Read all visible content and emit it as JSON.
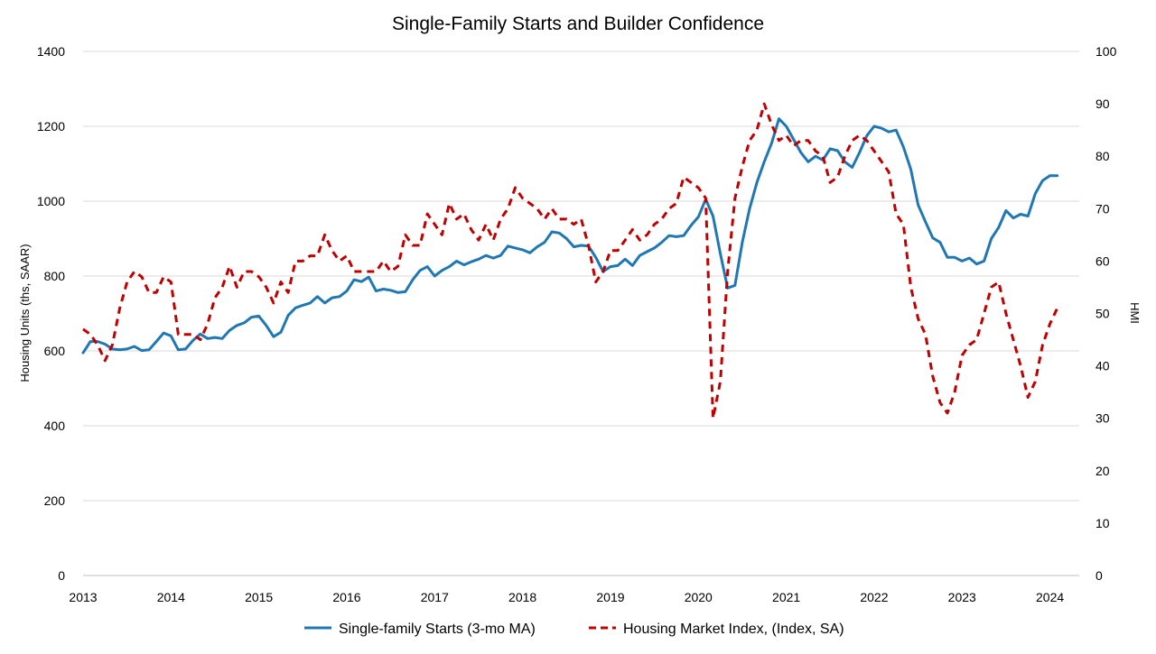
{
  "chart_data": {
    "type": "line",
    "title": "Single-Family Starts and Builder Confidence",
    "ylabel": "Housing Units (ths, SAAR)",
    "y2label": "HMI",
    "ylim": [
      0,
      1400
    ],
    "y2lim": [
      0,
      100
    ],
    "xlim": [
      2013,
      2024.333
    ],
    "yticks": [
      "0",
      "200",
      "400",
      "600",
      "800",
      "1000",
      "1200",
      "1400"
    ],
    "y2ticks": [
      "0",
      "10",
      "20",
      "30",
      "40",
      "50",
      "60",
      "70",
      "80",
      "90",
      "100"
    ],
    "xticks": [
      "2013",
      "2014",
      "2015",
      "2016",
      "2017",
      "2018",
      "2019",
      "2020",
      "2021",
      "2022",
      "2023",
      "2024"
    ],
    "grid": true,
    "legend": "bottom",
    "series": [
      {
        "name": "Single-family Starts (3-mo MA)",
        "axis": "left",
        "color": "#1f77b4",
        "style": "solid",
        "start": 2013.0,
        "step": 0.08333,
        "values": [
          595,
          625,
          625,
          618,
          605,
          603,
          605,
          612,
          601,
          603,
          625,
          648,
          640,
          603,
          605,
          628,
          645,
          633,
          636,
          633,
          655,
          668,
          675,
          690,
          693,
          668,
          638,
          650,
          695,
          715,
          722,
          728,
          745,
          728,
          742,
          745,
          760,
          790,
          785,
          797,
          760,
          765,
          762,
          756,
          758,
          790,
          815,
          825,
          800,
          815,
          825,
          840,
          830,
          838,
          845,
          855,
          848,
          855,
          880,
          875,
          870,
          862,
          878,
          890,
          918,
          915,
          900,
          878,
          882,
          880,
          850,
          812,
          825,
          828,
          845,
          828,
          855,
          865,
          875,
          890,
          908,
          905,
          908,
          935,
          958,
          1005,
          960,
          860,
          768,
          775,
          890,
          980,
          1050,
          1105,
          1155,
          1220,
          1200,
          1165,
          1130,
          1105,
          1120,
          1110,
          1140,
          1135,
          1105,
          1090,
          1130,
          1175,
          1200,
          1195,
          1185,
          1190,
          1145,
          1085,
          990,
          945,
          902,
          890,
          850,
          850,
          840,
          848,
          832,
          840,
          900,
          930,
          975,
          955,
          965,
          960,
          1020,
          1055,
          1068,
          1068
        ]
      },
      {
        "name": "Housing Market Index, (Index, SA)",
        "axis": "right",
        "color": "#c00000",
        "style": "dashed",
        "start": 2013.0,
        "step": 0.08333,
        "values": [
          47,
          46,
          44,
          41,
          44,
          51,
          56,
          58,
          57,
          54,
          54,
          57,
          56,
          46,
          46,
          46,
          45,
          48,
          53,
          55,
          59,
          55,
          58,
          58,
          57,
          55,
          52,
          56,
          54,
          60,
          60,
          61,
          61,
          65,
          62,
          60,
          61,
          58,
          58,
          58,
          58,
          60,
          58,
          59,
          65,
          63,
          63,
          69,
          67,
          65,
          71,
          68,
          69,
          66,
          64,
          67,
          64,
          68,
          70,
          74,
          72,
          71,
          70,
          68,
          70,
          68,
          68,
          67,
          68,
          63,
          56,
          58,
          62,
          62,
          64,
          66,
          64,
          65,
          67,
          68,
          70,
          71,
          76,
          75,
          74,
          72,
          30,
          37,
          58,
          72,
          78,
          83,
          85,
          90,
          86,
          83,
          84,
          82,
          83,
          83,
          81,
          80,
          75,
          76,
          80,
          83,
          84,
          83,
          81,
          79,
          77,
          69,
          67,
          55,
          49,
          46,
          38,
          33,
          31,
          35,
          42,
          44,
          45,
          50,
          55,
          56,
          50,
          45,
          40,
          34,
          37,
          44,
          48,
          51
        ]
      }
    ]
  }
}
